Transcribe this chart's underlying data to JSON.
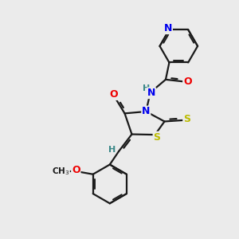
{
  "background_color": "#ebebeb",
  "bond_color": "#1a1a1a",
  "atom_colors": {
    "N": "#0000ee",
    "O": "#ee0000",
    "S": "#bbbb00",
    "H_teal": "#3a8888",
    "C": "#1a1a1a"
  },
  "figsize": [
    3.0,
    3.0
  ],
  "dpi": 100
}
